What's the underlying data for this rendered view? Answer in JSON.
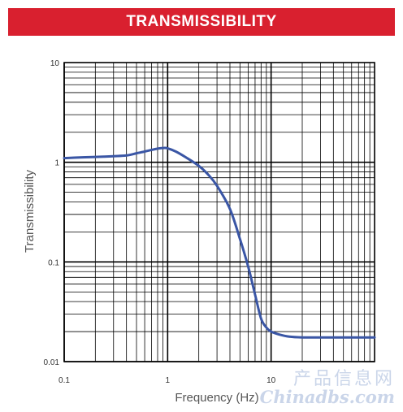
{
  "banner": {
    "title": "TRANSMISSIBILITY"
  },
  "chart_data": {
    "type": "line",
    "title": "TRANSMISSIBILITY",
    "xlabel": "Frequency (Hz)",
    "ylabel": "Transmissibility",
    "xscale": "log",
    "yscale": "log",
    "xlim": [
      0.1,
      100
    ],
    "ylim": [
      0.01,
      10
    ],
    "grid": true,
    "x_ticks": [
      {
        "value": 0.1,
        "label": "0.1"
      },
      {
        "value": 1,
        "label": "1"
      },
      {
        "value": 10,
        "label": "10"
      }
    ],
    "y_ticks": [
      {
        "value": 10,
        "label": "10"
      },
      {
        "value": 1,
        "label": "1"
      },
      {
        "value": 0.1,
        "label": "0.1"
      },
      {
        "value": 0.01,
        "label": "0.01"
      }
    ],
    "line_color": "#3a56a5",
    "series": [
      {
        "x": [
          0.1,
          0.15,
          0.2,
          0.3,
          0.4,
          0.5,
          0.6,
          0.7,
          0.8,
          0.9,
          1.0,
          1.2,
          1.5,
          2.0,
          2.5,
          3.0,
          4.0,
          5.0,
          6.0,
          7.0,
          8.0,
          9.0,
          10,
          12,
          15,
          20,
          30,
          50,
          100
        ],
        "y": [
          1.1,
          1.12,
          1.13,
          1.15,
          1.17,
          1.23,
          1.28,
          1.33,
          1.37,
          1.39,
          1.38,
          1.28,
          1.12,
          0.92,
          0.74,
          0.58,
          0.34,
          0.17,
          0.09,
          0.047,
          0.027,
          0.022,
          0.02,
          0.0187,
          0.0178,
          0.0175,
          0.0175,
          0.0175,
          0.0175
        ]
      }
    ]
  },
  "watermark": {
    "cn": "产品信息网",
    "en": "Chinadbs.com"
  }
}
